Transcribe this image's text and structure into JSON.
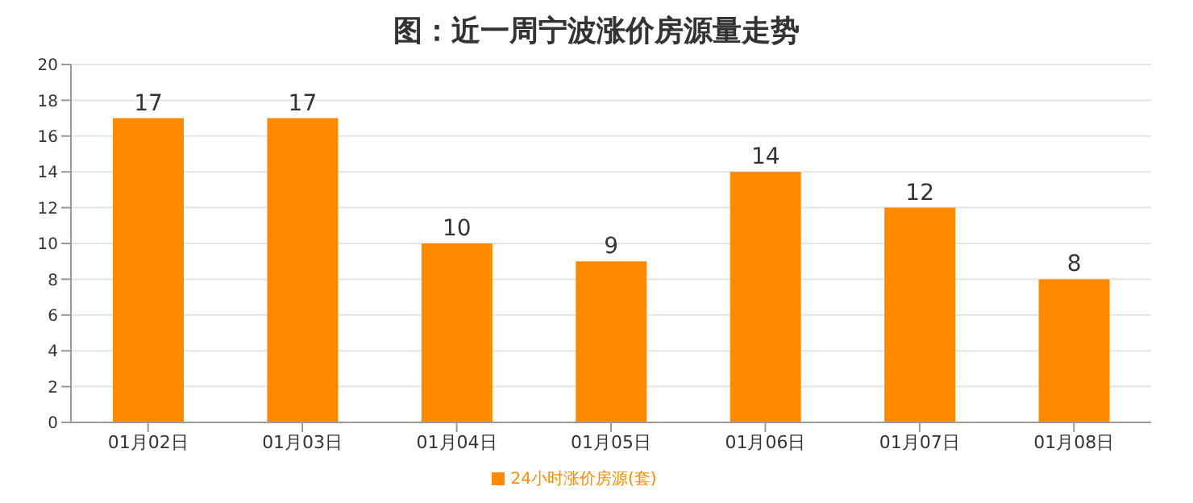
{
  "chart_data": {
    "type": "bar",
    "title": "图：近一周宁波涨价房源量走势",
    "categories": [
      "01月02日",
      "01月03日",
      "01月04日",
      "01月05日",
      "01月06日",
      "01月07日",
      "01月08日"
    ],
    "series": [
      {
        "name": "24小时涨价房源(套)",
        "color": "#ff8a00",
        "values": [
          17,
          17,
          10,
          9,
          14,
          12,
          8
        ]
      }
    ],
    "ylim": [
      0,
      20
    ],
    "yticks": [
      0,
      2,
      4,
      6,
      8,
      10,
      12,
      14,
      16,
      18,
      20
    ],
    "grid": "y",
    "legend": "bottom",
    "data_labels": true
  }
}
